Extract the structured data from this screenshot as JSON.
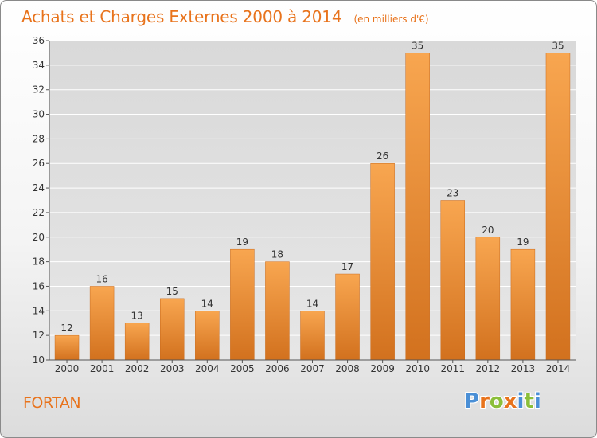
{
  "header": {
    "title": "Achats et Charges Externes 2000 à 2014",
    "subtitle": "(en milliers d'€)"
  },
  "commune_name": "FORTAN",
  "logo": {
    "letters": [
      "P",
      "r",
      "o",
      "x",
      "i",
      "t",
      "i"
    ],
    "colors": [
      "#4a8fd6",
      "#e8731c",
      "#8bbf3a",
      "#e8731c",
      "#4a8fd6",
      "#8bbf3a",
      "#4a8fd6"
    ]
  },
  "chart_data": {
    "type": "bar",
    "title": "Achats et Charges Externes 2000 à 2014",
    "subtitle": "(en milliers d'€)",
    "xlabel": "",
    "ylabel": "",
    "categories": [
      "2000",
      "2001",
      "2002",
      "2003",
      "2004",
      "2005",
      "2006",
      "2007",
      "2008",
      "2009",
      "2010",
      "2011",
      "2012",
      "2013",
      "2014"
    ],
    "values": [
      12,
      16,
      13,
      15,
      14,
      19,
      18,
      14,
      17,
      26,
      35,
      23,
      20,
      19,
      35
    ],
    "ylim": [
      10,
      36
    ],
    "yticks": [
      10,
      12,
      14,
      16,
      18,
      20,
      22,
      24,
      26,
      28,
      30,
      32,
      34,
      36
    ],
    "grid": true,
    "legend": "none",
    "colors": {
      "bar_light": "#f8a650",
      "bar_dark": "#d2711e",
      "text": "#e8731c",
      "grid": "#ffffff",
      "axis": "#555555"
    }
  }
}
